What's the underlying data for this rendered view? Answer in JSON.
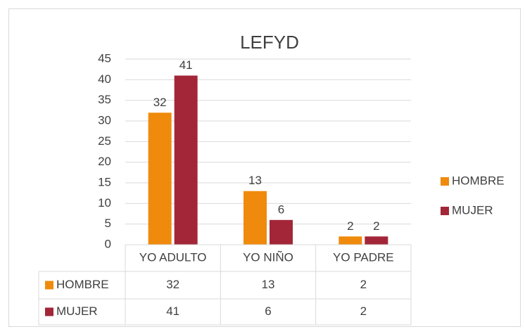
{
  "chart_data": {
    "type": "bar",
    "title": "LEFYD",
    "categories": [
      "YO ADULTO",
      "YO NIÑO",
      "YO PADRE"
    ],
    "series": [
      {
        "name": "HOMBRE",
        "color": "#f08a0c",
        "values": [
          32,
          13,
          2
        ]
      },
      {
        "name": "MUJER",
        "color": "#a32638",
        "values": [
          41,
          6,
          2
        ]
      }
    ],
    "ylim": [
      0,
      45
    ],
    "yticks": [
      0,
      5,
      10,
      15,
      20,
      25,
      30,
      35,
      40,
      45
    ],
    "grid": true,
    "legend": "right",
    "data_table": true
  }
}
